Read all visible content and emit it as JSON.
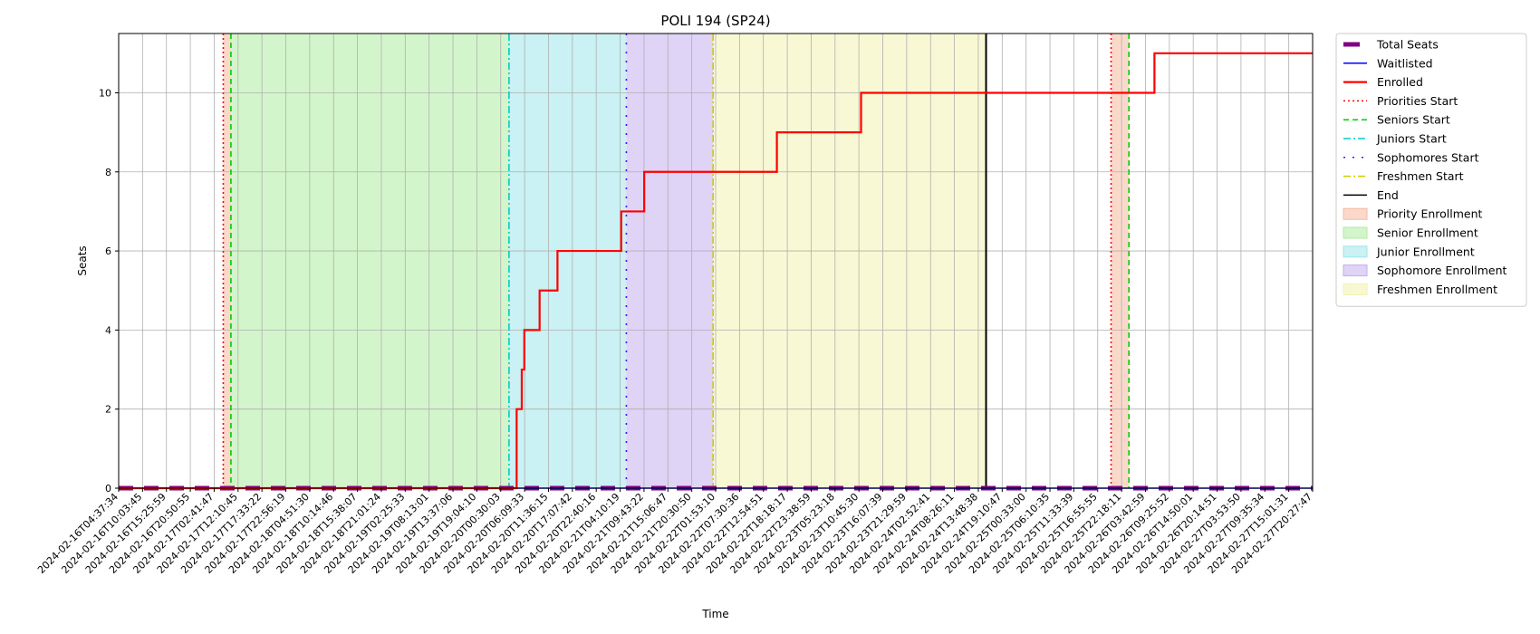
{
  "chart_data": {
    "type": "line",
    "title": "POLI 194 (SP24)",
    "xlabel": "Time",
    "ylabel": "Seats",
    "ylim": [
      0,
      11.5
    ],
    "y_ticks": [
      0,
      2,
      4,
      6,
      8,
      10
    ],
    "grid": true,
    "legend_position": "outside-right",
    "x_tick_labels": [
      "2024-02-16T04:37:34",
      "2024-02-16T10:03:45",
      "2024-02-16T15:25:59",
      "2024-02-16T20:50:55",
      "2024-02-17T02:41:47",
      "2024-02-17T12:10:45",
      "2024-02-17T17:33:22",
      "2024-02-17T22:56:19",
      "2024-02-18T04:51:30",
      "2024-02-18T10:14:46",
      "2024-02-18T15:38:07",
      "2024-02-18T21:01:24",
      "2024-02-19T02:25:33",
      "2024-02-19T08:13:01",
      "2024-02-19T13:37:06",
      "2024-02-19T19:04:10",
      "2024-02-20T00:30:03",
      "2024-02-20T06:09:33",
      "2024-02-20T11:36:15",
      "2024-02-20T17:07:42",
      "2024-02-20T22:40:16",
      "2024-02-21T04:10:19",
      "2024-02-21T09:43:22",
      "2024-02-21T15:06:47",
      "2024-02-21T20:30:50",
      "2024-02-22T01:53:10",
      "2024-02-22T07:30:36",
      "2024-02-22T12:54:51",
      "2024-02-22T18:18:17",
      "2024-02-22T23:38:59",
      "2024-02-23T05:23:18",
      "2024-02-23T10:45:30",
      "2024-02-23T16:07:39",
      "2024-02-23T21:29:59",
      "2024-02-24T02:52:41",
      "2024-02-24T08:26:11",
      "2024-02-24T13:48:38",
      "2024-02-24T19:10:47",
      "2024-02-25T00:33:00",
      "2024-02-25T06:10:35",
      "2024-02-25T11:33:39",
      "2024-02-25T16:55:55",
      "2024-02-25T22:18:11",
      "2024-02-26T03:42:59",
      "2024-02-26T09:25:52",
      "2024-02-26T14:50:01",
      "2024-02-26T20:14:51",
      "2024-02-27T03:53:50",
      "2024-02-27T09:35:34",
      "2024-02-27T15:01:31",
      "2024-02-27T20:27:47"
    ],
    "x_range_ticks": [
      0,
      50
    ],
    "x_range": [
      0,
      46.8
    ],
    "series": [
      {
        "name": "Total Seats",
        "color": "#800080",
        "style": "dashed-thick",
        "points": [
          [
            0,
            0
          ],
          [
            46.8,
            0
          ]
        ]
      },
      {
        "name": "Waitlisted",
        "color": "#0000ff",
        "style": "solid",
        "points": [
          [
            0,
            0
          ],
          [
            46.8,
            0
          ]
        ]
      },
      {
        "name": "Enrolled",
        "color": "#ff0000",
        "style": "solid-thick",
        "points": [
          [
            0,
            0
          ],
          [
            15.6,
            0
          ],
          [
            15.6,
            2
          ],
          [
            15.8,
            2
          ],
          [
            15.8,
            3
          ],
          [
            15.9,
            3
          ],
          [
            15.9,
            4
          ],
          [
            16.5,
            4
          ],
          [
            16.5,
            5
          ],
          [
            17.2,
            5
          ],
          [
            17.2,
            6
          ],
          [
            19.7,
            6
          ],
          [
            19.7,
            7
          ],
          [
            20.6,
            7
          ],
          [
            20.6,
            8
          ],
          [
            25.8,
            8
          ],
          [
            25.8,
            9
          ],
          [
            29.1,
            9
          ],
          [
            29.1,
            10
          ],
          [
            40.6,
            10
          ],
          [
            40.6,
            11
          ],
          [
            46.8,
            11
          ]
        ]
      }
    ],
    "vertical_markers": [
      {
        "name": "Priorities Start",
        "color": "#ff0000",
        "style": "dotted",
        "x": [
          4.1,
          38.9
        ]
      },
      {
        "name": "Seniors Start",
        "color": "#00cc00",
        "style": "dashed",
        "x": [
          4.4,
          39.6
        ]
      },
      {
        "name": "Juniors Start",
        "color": "#00cccc",
        "style": "dashdot",
        "x": [
          15.3
        ]
      },
      {
        "name": "Sophomores Start",
        "color": "#5500ff",
        "style": "loosely-dotted",
        "x": [
          19.9
        ]
      },
      {
        "name": "Freshmen Start",
        "color": "#cccc00",
        "style": "dashdot",
        "x": [
          23.3
        ]
      },
      {
        "name": "End",
        "color": "#000000",
        "style": "solid",
        "x": [
          34.0
        ]
      }
    ],
    "regions": [
      {
        "name": "Priority Enrollment",
        "color": "#f5b9a0",
        "spans": [
          [
            4.1,
            4.4
          ],
          [
            38.9,
            39.6
          ]
        ]
      },
      {
        "name": "Senior Enrollment",
        "color": "#aeeca0",
        "spans": [
          [
            4.4,
            15.3
          ]
        ]
      },
      {
        "name": "Junior Enrollment",
        "color": "#9fe6ea",
        "spans": [
          [
            15.3,
            19.9
          ]
        ]
      },
      {
        "name": "Sophomore Enrollment",
        "color": "#c4aeee",
        "spans": [
          [
            19.9,
            23.3
          ]
        ]
      },
      {
        "name": "Freshmen Enrollment",
        "color": "#f2f2b0",
        "spans": [
          [
            23.3,
            34.0
          ]
        ]
      }
    ]
  }
}
